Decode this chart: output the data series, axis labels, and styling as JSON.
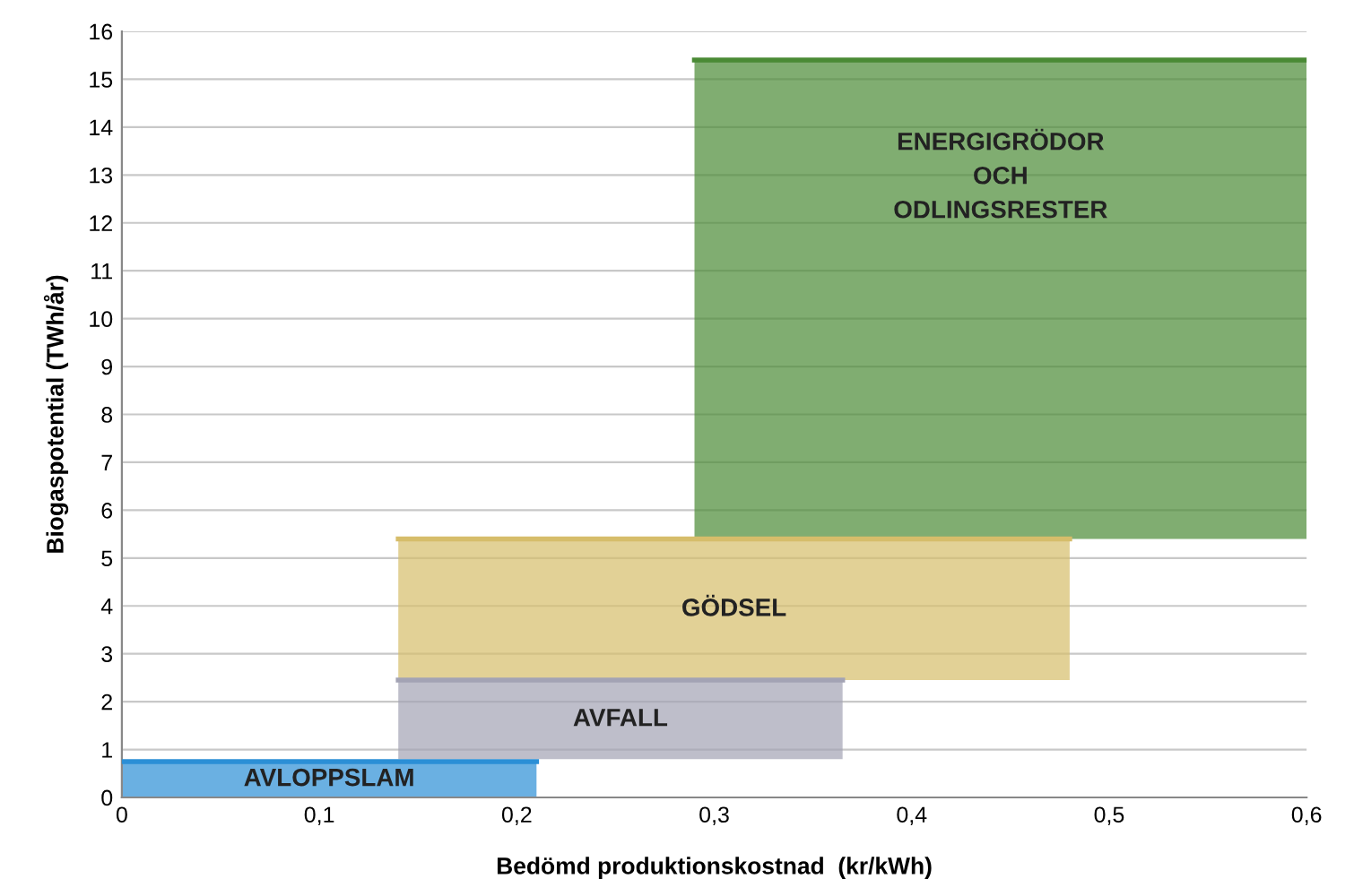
{
  "chart_data": {
    "type": "line",
    "xlabel": "Bedömd produktionskostnad  (kr/kWh)",
    "ylabel": "Biogaspotential (TWh/år)",
    "series": [
      {
        "name": "AVLOPPSLAM",
        "color": "#2b8fd6",
        "x": [
          0,
          0.21
        ],
        "values": [
          0.75,
          0.75
        ],
        "upper": [
          0.75,
          0.75
        ],
        "lower": [
          0,
          0
        ]
      },
      {
        "name": "AVFALL",
        "color": "#a3a3b4",
        "x": [
          0.14,
          0.365
        ],
        "values": [
          2.45,
          2.45
        ],
        "upper": [
          2.45,
          2.45
        ],
        "lower": [
          0.8,
          0.8
        ]
      },
      {
        "name": "GÖDSEL",
        "color": "#d6bd6a",
        "x": [
          0.14,
          0.48
        ],
        "values": [
          5.4,
          5.4
        ],
        "upper": [
          5.4,
          5.4
        ],
        "lower": [
          2.45,
          2.45
        ]
      },
      {
        "name": "ENERGIGRÖDOR\nOCH\nODLINGSRESTER",
        "color": "#4a8a35",
        "x": [
          0.29,
          0.6
        ],
        "values": [
          15.4,
          15.4
        ],
        "upper": [
          15.4,
          15.4
        ],
        "lower": [
          5.4,
          5.4
        ]
      }
    ],
    "xlim": [
      0,
      0.6
    ],
    "ylim": [
      0,
      16
    ],
    "xticks": [
      0,
      {
        "value": 0.1,
        "label": "0,1"
      },
      {
        "value": 0.2,
        "label": "0,2"
      },
      {
        "value": 0.3,
        "label": "0,3"
      },
      {
        "value": 0.4,
        "label": "0,4"
      },
      {
        "value": 0.5,
        "label": "0,5"
      },
      {
        "value": 0.6,
        "label": "0,6"
      }
    ],
    "yticks": [
      0,
      1,
      2,
      3,
      4,
      5,
      6,
      7,
      8,
      9,
      10,
      11,
      12,
      13,
      14,
      15,
      16
    ],
    "grid": "y"
  }
}
